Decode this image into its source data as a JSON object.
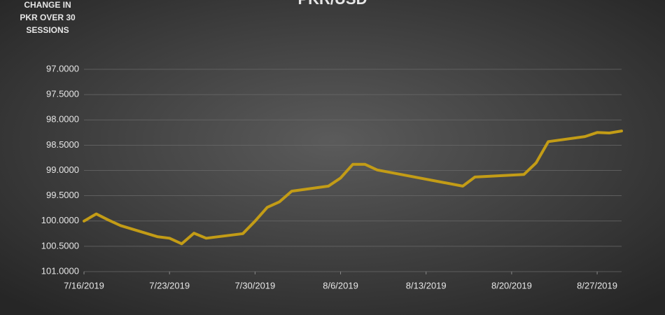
{
  "chart_data": {
    "type": "line",
    "title": "PKR/USD",
    "y_label": [
      "CHANGE IN",
      "PKR OVER 30",
      "SESSIONS"
    ],
    "x": [
      "2019-07-16",
      "2019-07-17",
      "2019-07-18",
      "2019-07-19",
      "2019-07-22",
      "2019-07-23",
      "2019-07-24",
      "2019-07-25",
      "2019-07-26",
      "2019-07-29",
      "2019-07-30",
      "2019-07-31",
      "2019-08-01",
      "2019-08-02",
      "2019-08-05",
      "2019-08-06",
      "2019-08-07",
      "2019-08-08",
      "2019-08-09",
      "2019-08-16",
      "2019-08-17",
      "2019-08-21",
      "2019-08-22",
      "2019-08-23",
      "2019-08-26",
      "2019-08-27",
      "2019-08-28",
      "2019-08-29"
    ],
    "series": [
      {
        "name": "PKR/USD",
        "color": "#c39c16",
        "values": [
          100.0,
          99.86,
          99.98,
          100.09,
          100.31,
          100.34,
          100.45,
          100.24,
          100.34,
          100.25,
          100.0,
          99.73,
          99.62,
          99.41,
          99.31,
          99.15,
          98.88,
          98.88,
          98.99,
          99.31,
          99.13,
          99.08,
          98.85,
          98.43,
          98.33,
          98.25,
          98.26,
          98.22
        ]
      }
    ],
    "xlim": [
      "2019-07-16",
      "2019-08-29"
    ],
    "xticks": [
      {
        "value": "2019-07-16",
        "label": "7/16/2019"
      },
      {
        "value": "2019-07-23",
        "label": "7/23/2019"
      },
      {
        "value": "2019-07-30",
        "label": "7/30/2019"
      },
      {
        "value": "2019-08-06",
        "label": "8/6/2019"
      },
      {
        "value": "2019-08-13",
        "label": "8/13/2019"
      },
      {
        "value": "2019-08-20",
        "label": "8/20/2019"
      },
      {
        "value": "2019-08-27",
        "label": "8/27/2019"
      }
    ],
    "ylim": [
      101,
      97
    ],
    "yticks": [
      {
        "value": 97,
        "label": "97.0000"
      },
      {
        "value": 97.5,
        "label": "97.5000"
      },
      {
        "value": 98,
        "label": "98.0000"
      },
      {
        "value": 98.5,
        "label": "98.5000"
      },
      {
        "value": 99,
        "label": "99.0000"
      },
      {
        "value": 99.5,
        "label": "99.5000"
      },
      {
        "value": 100,
        "label": "100.0000"
      },
      {
        "value": 100.5,
        "label": "100.5000"
      },
      {
        "value": 101,
        "label": "101.0000"
      }
    ],
    "grid": true
  }
}
